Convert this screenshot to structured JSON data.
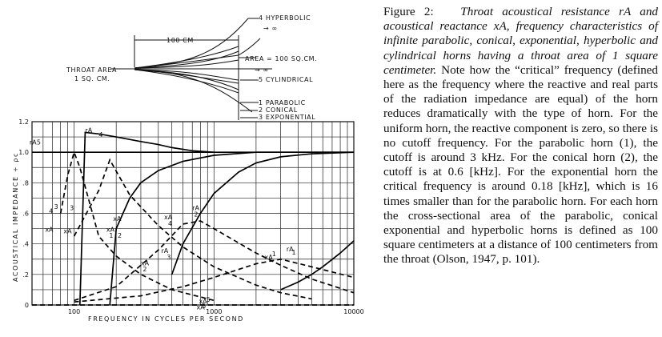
{
  "figure": {
    "horn_diagram": {
      "length_label": "100 CM",
      "throat_label_line1": "THROAT AREA",
      "throat_label_line2": "1 SQ. CM.",
      "area_label": "AREA = 100 SQ.CM.",
      "infinity_labels": [
        "→ ∞",
        "→ ∞"
      ],
      "horn_labels": [
        "4 HYPERBOLIC",
        "5 CYLINDRICAL",
        "1 PARABOLIC",
        "2 CONICAL",
        "3 EXPONENTIAL"
      ]
    },
    "chart_data": {
      "type": "line",
      "xlabel": "FREQUENCY IN CYCLES PER SECOND",
      "ylabel": "ACOUSTICAL IMPEDANCE ÷ ρc",
      "x_scale": "log",
      "xlim": [
        50,
        10000
      ],
      "ylim": [
        0,
        1.2
      ],
      "x_tick_labels": [
        "100",
        "1000",
        "10000"
      ],
      "y_tick_labels": [
        "0",
        ".2",
        ".4",
        ".6",
        ".8",
        "1.0",
        "1.2"
      ],
      "grid": true,
      "series": [
        {
          "name": "rA 1",
          "style": "solid",
          "x": [
            3000,
            4000,
            5000,
            6000,
            8000,
            10000
          ],
          "y": [
            0.1,
            0.15,
            0.2,
            0.25,
            0.34,
            0.42
          ]
        },
        {
          "name": "xA 1",
          "style": "dashed",
          "x": [
            100,
            300,
            600,
            1000,
            2000,
            3000,
            5000,
            10000
          ],
          "y": [
            0.02,
            0.06,
            0.12,
            0.18,
            0.27,
            0.3,
            0.25,
            0.18
          ]
        },
        {
          "name": "rA 2",
          "style": "solid",
          "x": [
            500,
            600,
            800,
            1000,
            1500,
            2000,
            3000,
            5000,
            10000
          ],
          "y": [
            0.2,
            0.4,
            0.6,
            0.73,
            0.87,
            0.93,
            0.97,
            0.99,
            1.0
          ]
        },
        {
          "name": "xA 2",
          "style": "dashed",
          "x": [
            100,
            200,
            400,
            600,
            800,
            1000,
            2000,
            3000,
            5000,
            10000
          ],
          "y": [
            0.03,
            0.12,
            0.36,
            0.53,
            0.55,
            0.5,
            0.34,
            0.26,
            0.17,
            0.08
          ]
        },
        {
          "name": "rA 3",
          "style": "solid",
          "x": [
            180,
            200,
            250,
            300,
            400,
            600,
            1000,
            2000,
            5000,
            10000
          ],
          "y": [
            0.0,
            0.5,
            0.7,
            0.8,
            0.88,
            0.94,
            0.98,
            1.0,
            1.0,
            1.0
          ]
        },
        {
          "name": "xA 3",
          "style": "dashed",
          "x": [
            100,
            150,
            180,
            250,
            400,
            600,
            1000,
            2000,
            3000,
            5000
          ],
          "y": [
            0.45,
            0.75,
            0.95,
            0.72,
            0.52,
            0.38,
            0.25,
            0.13,
            0.08,
            0.04
          ]
        },
        {
          "name": "rA 4",
          "style": "solid",
          "x": [
            110,
            120,
            150,
            200,
            300,
            400,
            500,
            700,
            1000
          ],
          "y": [
            0.0,
            1.13,
            1.12,
            1.1,
            1.07,
            1.05,
            1.03,
            1.01,
            1.0
          ]
        },
        {
          "name": "xA 4",
          "style": "dashed",
          "x": [
            80,
            90,
            100,
            110,
            150,
            200,
            300,
            500,
            1000
          ],
          "y": [
            0.6,
            0.85,
            1.0,
            0.9,
            0.45,
            0.32,
            0.2,
            0.1,
            0.03
          ]
        },
        {
          "name": "rA 5",
          "style": "solid",
          "x": [
            50,
            1000,
            10000
          ],
          "y": [
            1.0,
            1.0,
            1.0
          ]
        },
        {
          "name": "xA 5",
          "style": "dashed",
          "x": [
            50,
            10000
          ],
          "y": [
            0.0,
            0.0
          ]
        }
      ],
      "curve_labels": [
        "rA",
        "5",
        "xA",
        "4",
        "3",
        "rA",
        "4",
        "xA",
        "3",
        "xA",
        "2",
        "xA",
        "1",
        "xA",
        "2",
        "xA",
        "4",
        "rA",
        "2",
        "xA",
        "1",
        "rA",
        "1",
        "xA",
        "5",
        "rA",
        "3",
        "xA",
        "5"
      ]
    }
  },
  "caption": {
    "label": "Figure 2:",
    "title": "Throat acoustical resistance rA and acoustical reactance xA, frequency characteristics of infinite parabolic, conical, exponential, hyperbolic and cylindrical horns having a throat area of 1 square centimeter.",
    "body": "Note how the “critical” frequency (defined here as the frequency where the reactive and real parts of the radiation impedance are equal) of the horn reduces dramatically with the type of horn. For the uniform horn, the reactive component is zero, so there is no cutoff frequency. For the parabolic horn (1), the cutoff is around 3 kHz. For the conical horn (2), the cutoff is at 0.6 [kHz]. For the exponential horn the critical frequency is around 0.18 [kHz], which is 16 times smaller than for the parabolic horn. For each horn the cross-sectional area of the parabolic, conical exponential and hyperbolic horns is defined as 100 square centimeters at a distance of 100 centimeters from the throat (Olson, 1947, p. 101)."
  }
}
